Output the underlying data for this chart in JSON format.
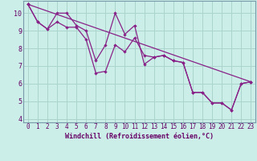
{
  "xlabel": "Windchill (Refroidissement éolien,°C)",
  "bg_color": "#cceee8",
  "line_color": "#882288",
  "grid_color": "#aad4cc",
  "spine_color": "#7799aa",
  "xlim": [
    -0.5,
    23.5
  ],
  "ylim": [
    3.8,
    10.7
  ],
  "xticks": [
    0,
    1,
    2,
    3,
    4,
    5,
    6,
    7,
    8,
    9,
    10,
    11,
    12,
    13,
    14,
    15,
    16,
    17,
    18,
    19,
    20,
    21,
    22,
    23
  ],
  "yticks": [
    4,
    5,
    6,
    7,
    8,
    9,
    10
  ],
  "line1_x": [
    0,
    1,
    2,
    3,
    4,
    5,
    6,
    7,
    8,
    9,
    10,
    11,
    12,
    13,
    14,
    15,
    16,
    17,
    18,
    19,
    20,
    21,
    22,
    23
  ],
  "line1_y": [
    10.5,
    9.5,
    9.1,
    10.0,
    10.0,
    9.3,
    9.0,
    7.3,
    8.2,
    10.0,
    8.8,
    9.3,
    7.1,
    7.5,
    7.6,
    7.3,
    7.2,
    5.5,
    5.5,
    4.9,
    4.9,
    4.5,
    6.0,
    6.1
  ],
  "line2_x": [
    0,
    1,
    2,
    3,
    4,
    5,
    6,
    7,
    8,
    9,
    10,
    11,
    12,
    13,
    14,
    15,
    16,
    17,
    18,
    19,
    20,
    21,
    22,
    23
  ],
  "line2_y": [
    10.5,
    9.5,
    9.1,
    9.5,
    9.2,
    9.2,
    8.5,
    6.6,
    6.7,
    8.2,
    7.8,
    8.6,
    7.6,
    7.5,
    7.6,
    7.3,
    7.2,
    5.5,
    5.5,
    4.9,
    4.9,
    4.5,
    6.0,
    6.1
  ],
  "trend_x": [
    0,
    23
  ],
  "trend_y": [
    10.5,
    6.1
  ],
  "label_color": "#660066",
  "tick_fontsize": 5.5,
  "xlabel_fontsize": 6.0
}
